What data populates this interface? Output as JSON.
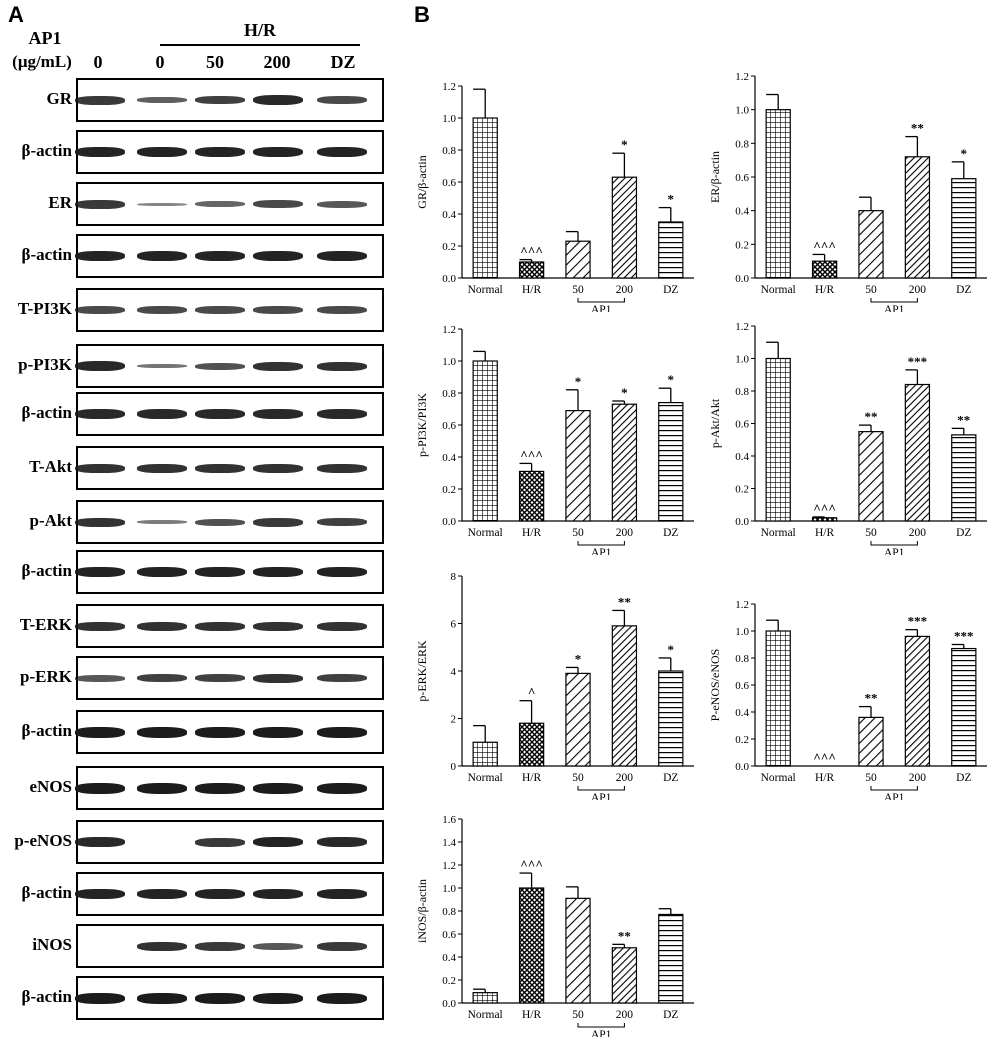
{
  "panel_a": {
    "letter": "A",
    "header": {
      "treatment_label": "AP1",
      "unit_label": "(μg/mL)",
      "group_label": "H/R",
      "lanes": [
        "0",
        "0",
        "50",
        "200",
        "DZ"
      ]
    },
    "blots": [
      {
        "label": "GR",
        "bands": [
          0.8,
          0.55,
          0.75,
          0.9,
          0.7
        ]
      },
      {
        "label": "β-actin",
        "bands": [
          0.95,
          0.95,
          0.95,
          0.95,
          0.95
        ]
      },
      {
        "label": "ER",
        "bands": [
          0.8,
          0.3,
          0.5,
          0.7,
          0.6
        ]
      },
      {
        "label": "β-actin",
        "bands": [
          0.95,
          0.95,
          0.95,
          0.95,
          0.95
        ]
      },
      {
        "label": "T-PI3K",
        "bands": [
          0.7,
          0.7,
          0.7,
          0.7,
          0.7
        ]
      },
      {
        "label": "p-PI3K",
        "bands": [
          0.9,
          0.4,
          0.65,
          0.85,
          0.85
        ]
      },
      {
        "label": "β-actin",
        "bands": [
          0.9,
          0.9,
          0.9,
          0.9,
          0.9
        ]
      },
      {
        "label": "T-Akt",
        "bands": [
          0.85,
          0.85,
          0.85,
          0.85,
          0.85
        ]
      },
      {
        "label": "p-Akt",
        "bands": [
          0.85,
          0.35,
          0.65,
          0.8,
          0.75
        ]
      },
      {
        "label": "β-actin",
        "bands": [
          0.95,
          0.95,
          0.95,
          0.95,
          0.95
        ]
      },
      {
        "label": "T-ERK",
        "bands": [
          0.85,
          0.85,
          0.85,
          0.85,
          0.85
        ]
      },
      {
        "label": "p-ERK",
        "bands": [
          0.6,
          0.75,
          0.75,
          0.85,
          0.75
        ]
      },
      {
        "label": "β-actin",
        "bands": [
          1.0,
          1.0,
          1.0,
          1.0,
          1.0
        ]
      },
      {
        "label": "eNOS",
        "bands": [
          1.0,
          1.0,
          1.0,
          1.0,
          1.0
        ]
      },
      {
        "label": "p-eNOS",
        "bands": [
          0.9,
          0.0,
          0.8,
          0.95,
          0.9
        ]
      },
      {
        "label": "β-actin",
        "bands": [
          0.95,
          0.95,
          0.95,
          0.95,
          0.95
        ]
      },
      {
        "label": "iNOS",
        "bands": [
          0.0,
          0.85,
          0.8,
          0.6,
          0.8
        ]
      },
      {
        "label": "β-actin",
        "bands": [
          1.0,
          1.0,
          1.0,
          1.0,
          1.0
        ]
      }
    ]
  },
  "panel_b": {
    "letter": "B"
  },
  "patterns": {
    "Normal": "grid",
    "H/R": "dots",
    "50": "diag",
    "200": "diag-dense",
    "DZ": "horiz"
  },
  "chart_data": [
    {
      "type": "bar",
      "ylabel": "GR/β-actin",
      "categories": [
        "Normal",
        "H/R",
        "50",
        "200",
        "DZ"
      ],
      "values": [
        1.0,
        0.1,
        0.23,
        0.63,
        0.35
      ],
      "errors": [
        0.18,
        0.015,
        0.06,
        0.15,
        0.09
      ],
      "significance": [
        "",
        "^^^",
        "",
        "*",
        "*"
      ],
      "ylim": [
        0,
        1.2
      ],
      "yticks": [
        "0.0",
        "0.2",
        "0.4",
        "0.6",
        "0.8",
        "1.0",
        "1.2"
      ],
      "bracket_label": "AP1"
    },
    {
      "type": "bar",
      "ylabel": "ER/β-actin",
      "categories": [
        "Normal",
        "H/R",
        "50",
        "200",
        "DZ"
      ],
      "values": [
        1.0,
        0.1,
        0.4,
        0.72,
        0.59
      ],
      "errors": [
        0.09,
        0.04,
        0.08,
        0.12,
        0.1
      ],
      "significance": [
        "",
        "^^^",
        "",
        "**",
        "*"
      ],
      "ylim": [
        0,
        1.2
      ],
      "yticks": [
        "0.0",
        "0.2",
        "0.4",
        "0.6",
        "0.8",
        "1.0",
        "1.2"
      ],
      "bracket_label": "AP1"
    },
    {
      "type": "bar",
      "ylabel": "p-PI3K/PI3K",
      "categories": [
        "Normal",
        "H/R",
        "50",
        "200",
        "DZ"
      ],
      "values": [
        1.0,
        0.31,
        0.69,
        0.73,
        0.74
      ],
      "errors": [
        0.06,
        0.05,
        0.13,
        0.02,
        0.09
      ],
      "significance": [
        "",
        "^^^",
        "*",
        "*",
        "*"
      ],
      "ylim": [
        0,
        1.2
      ],
      "yticks": [
        "0.0",
        "0.2",
        "0.4",
        "0.6",
        "0.8",
        "1.0",
        "1.2"
      ],
      "bracket_label": "AP1"
    },
    {
      "type": "bar",
      "ylabel": "p-Akt/Akt",
      "categories": [
        "Normal",
        "H/R",
        "50",
        "200",
        "DZ"
      ],
      "values": [
        1.0,
        0.02,
        0.55,
        0.84,
        0.53
      ],
      "errors": [
        0.1,
        0.005,
        0.04,
        0.09,
        0.04
      ],
      "significance": [
        "",
        "^^^",
        "**",
        "***",
        "**"
      ],
      "ylim": [
        0,
        1.2
      ],
      "yticks": [
        "0.0",
        "0.2",
        "0.4",
        "0.6",
        "0.8",
        "1.0",
        "1.2"
      ],
      "bracket_label": "AP1"
    },
    {
      "type": "bar",
      "ylabel": "p-ERK/ERK",
      "categories": [
        "Normal",
        "H/R",
        "50",
        "200",
        "DZ"
      ],
      "values": [
        1.0,
        1.8,
        3.9,
        5.9,
        4.0
      ],
      "errors": [
        0.7,
        0.95,
        0.25,
        0.65,
        0.55
      ],
      "significance": [
        "",
        "^",
        "*",
        "**",
        "*"
      ],
      "ylim": [
        0,
        8
      ],
      "yticks": [
        "0",
        "2",
        "4",
        "6",
        "8"
      ],
      "bracket_label": "AP1"
    },
    {
      "type": "bar",
      "ylabel": "P-eNOS/eNOS",
      "categories": [
        "Normal",
        "H/R",
        "50",
        "200",
        "DZ"
      ],
      "values": [
        1.0,
        0.0,
        0.36,
        0.96,
        0.87
      ],
      "errors": [
        0.08,
        0.0,
        0.08,
        0.05,
        0.03
      ],
      "significance": [
        "",
        "^^^",
        "**",
        "***",
        "***"
      ],
      "ylim": [
        0,
        1.2
      ],
      "yticks": [
        "0.0",
        "0.2",
        "0.4",
        "0.6",
        "0.8",
        "1.0",
        "1.2"
      ],
      "bracket_label": "AP1"
    },
    {
      "type": "bar",
      "ylabel": "iNOS/β-actin",
      "categories": [
        "Normal",
        "H/R",
        "50",
        "200",
        "DZ"
      ],
      "values": [
        0.09,
        1.0,
        0.91,
        0.48,
        0.77
      ],
      "errors": [
        0.03,
        0.13,
        0.1,
        0.03,
        0.05
      ],
      "significance": [
        "",
        "^^^",
        "",
        "**",
        ""
      ],
      "ylim": [
        0,
        1.6
      ],
      "yticks": [
        "0.0",
        "0.2",
        "0.4",
        "0.6",
        "0.8",
        "1.0",
        "1.2",
        "1.4",
        "1.6"
      ],
      "bracket_label": "AP1"
    }
  ]
}
